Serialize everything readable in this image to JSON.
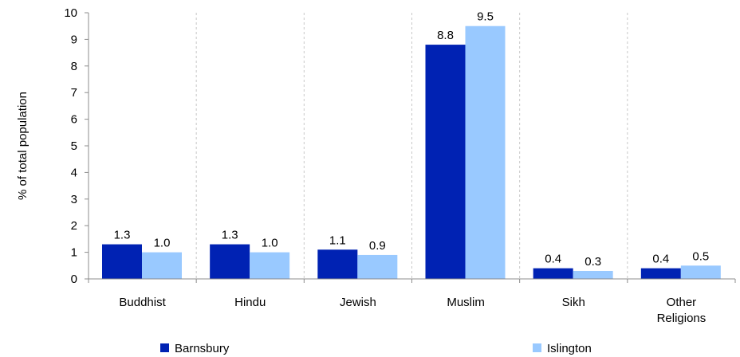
{
  "chart_data": {
    "type": "bar",
    "categories": [
      [
        "Buddhist"
      ],
      [
        "Hindu"
      ],
      [
        "Jewish"
      ],
      [
        "Muslim"
      ],
      [
        "Sikh"
      ],
      [
        "Other",
        "Religions"
      ]
    ],
    "series": [
      {
        "name": "Barnsbury",
        "color": "#0022b3",
        "values": [
          1.3,
          1.3,
          1.1,
          8.8,
          0.4,
          0.4
        ]
      },
      {
        "name": "Islington",
        "color": "#99c9ff",
        "values": [
          1.0,
          1.0,
          0.9,
          9.5,
          0.3,
          0.5
        ]
      }
    ],
    "value_labels": [
      [
        "1.3",
        "1.3",
        "1.1",
        "8.8",
        "0.4",
        "0.4"
      ],
      [
        "1.0",
        "1.0",
        "0.9",
        "9.5",
        "0.3",
        "0.5"
      ]
    ],
    "title": "",
    "xlabel": "",
    "ylabel": "% of total population",
    "ylim": [
      0,
      10
    ],
    "yticks": [
      0,
      1,
      2,
      3,
      4,
      5,
      6,
      7,
      8,
      9,
      10
    ],
    "grid": "vertical dashed separators between categories",
    "legend_position": "bottom"
  }
}
